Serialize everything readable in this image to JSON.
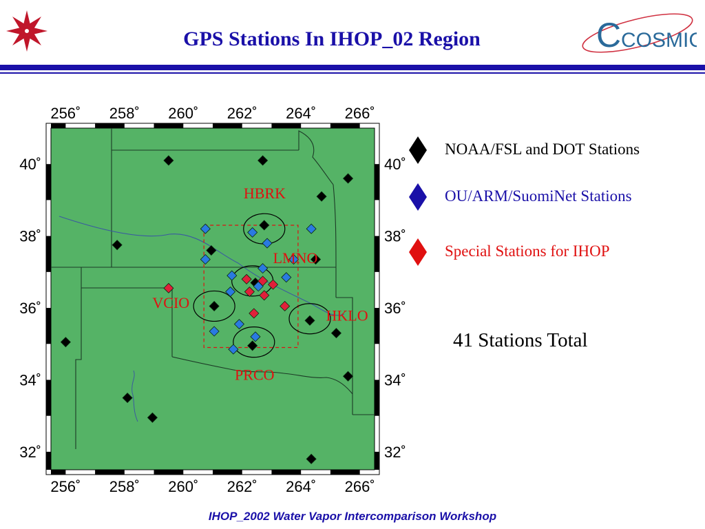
{
  "header": {
    "title": "GPS Stations In IHOP_02 Region",
    "logo_right_text": "COSMIC"
  },
  "legend": [
    {
      "label": "NOAA/FSL and DOT Stations",
      "color": "#000000"
    },
    {
      "label": "OU/ARM/SuomiNet Stations",
      "color": "#1a10a8"
    },
    {
      "label": "Special Stations for IHOP",
      "color": "#e01010"
    }
  ],
  "summary": {
    "stations_total": "41 Stations Total"
  },
  "footer": {
    "text": "IHOP_2002 Water Vapor Intercomparison Workshop"
  },
  "map": {
    "land_color": "#55b366",
    "lon_range": [
      255.5,
      266.5
    ],
    "lat_range": [
      31.5,
      41.0
    ],
    "lon_ticks": [
      {
        "value": 256,
        "label": "256˚"
      },
      {
        "value": 258,
        "label": "258˚"
      },
      {
        "value": 260,
        "label": "260˚"
      },
      {
        "value": 262,
        "label": "262˚"
      },
      {
        "value": 264,
        "label": "264˚"
      },
      {
        "value": 266,
        "label": "266˚"
      }
    ],
    "lat_ticks": [
      {
        "value": 40,
        "label": "40˚"
      },
      {
        "value": 38,
        "label": "38˚"
      },
      {
        "value": 36,
        "label": "36˚"
      },
      {
        "value": 34,
        "label": "34˚"
      },
      {
        "value": 32,
        "label": "32˚"
      }
    ],
    "ihop_box": {
      "lon": [
        260.7,
        263.9
      ],
      "lat": [
        34.9,
        38.3
      ]
    },
    "labels": [
      {
        "text": "HBRK",
        "lon": 262.05,
        "lat": 39.05
      },
      {
        "text": "LMNO",
        "lon": 263.05,
        "lat": 37.25
      },
      {
        "text": "VCIO",
        "lon": 258.95,
        "lat": 36.0
      },
      {
        "text": "HKLO",
        "lon": 264.85,
        "lat": 35.65
      },
      {
        "text": "PRCO",
        "lon": 261.75,
        "lat": 34.0
      }
    ],
    "circles": [
      {
        "lon": 262.75,
        "lat": 38.2
      },
      {
        "lon": 262.35,
        "lat": 36.75
      },
      {
        "lon": 261.05,
        "lat": 36.05
      },
      {
        "lon": 264.3,
        "lat": 35.7
      },
      {
        "lon": 262.4,
        "lat": 35.05
      }
    ],
    "stations": {
      "noaa": [
        {
          "lon": 259.5,
          "lat": 40.1
        },
        {
          "lon": 262.7,
          "lat": 40.1
        },
        {
          "lon": 265.6,
          "lat": 39.6
        },
        {
          "lon": 264.7,
          "lat": 39.1
        },
        {
          "lon": 262.75,
          "lat": 38.3
        },
        {
          "lon": 257.75,
          "lat": 37.75
        },
        {
          "lon": 260.95,
          "lat": 37.6
        },
        {
          "lon": 264.5,
          "lat": 37.35
        },
        {
          "lon": 262.45,
          "lat": 36.7
        },
        {
          "lon": 261.05,
          "lat": 36.05
        },
        {
          "lon": 264.3,
          "lat": 35.65
        },
        {
          "lon": 265.2,
          "lat": 35.3
        },
        {
          "lon": 256.0,
          "lat": 35.05
        },
        {
          "lon": 262.35,
          "lat": 34.95
        },
        {
          "lon": 265.6,
          "lat": 34.1
        },
        {
          "lon": 258.1,
          "lat": 33.5
        },
        {
          "lon": 258.95,
          "lat": 32.95
        },
        {
          "lon": 264.35,
          "lat": 31.8
        }
      ],
      "ou": [
        {
          "lon": 260.75,
          "lat": 38.2
        },
        {
          "lon": 262.35,
          "lat": 38.1
        },
        {
          "lon": 264.35,
          "lat": 38.2
        },
        {
          "lon": 262.85,
          "lat": 37.8
        },
        {
          "lon": 260.75,
          "lat": 37.35
        },
        {
          "lon": 263.75,
          "lat": 37.35
        },
        {
          "lon": 262.7,
          "lat": 37.1
        },
        {
          "lon": 261.65,
          "lat": 36.9
        },
        {
          "lon": 263.5,
          "lat": 36.85
        },
        {
          "lon": 262.55,
          "lat": 36.6
        },
        {
          "lon": 261.6,
          "lat": 36.45
        },
        {
          "lon": 261.9,
          "lat": 35.55
        },
        {
          "lon": 261.05,
          "lat": 35.35
        },
        {
          "lon": 262.45,
          "lat": 35.2
        },
        {
          "lon": 261.7,
          "lat": 34.85
        }
      ],
      "special": [
        {
          "lon": 259.5,
          "lat": 36.55
        },
        {
          "lon": 262.15,
          "lat": 36.8
        },
        {
          "lon": 262.7,
          "lat": 36.75
        },
        {
          "lon": 263.05,
          "lat": 36.65
        },
        {
          "lon": 262.25,
          "lat": 36.45
        },
        {
          "lon": 262.75,
          "lat": 36.35
        },
        {
          "lon": 263.45,
          "lat": 36.05
        },
        {
          "lon": 262.4,
          "lat": 35.85
        }
      ]
    }
  }
}
